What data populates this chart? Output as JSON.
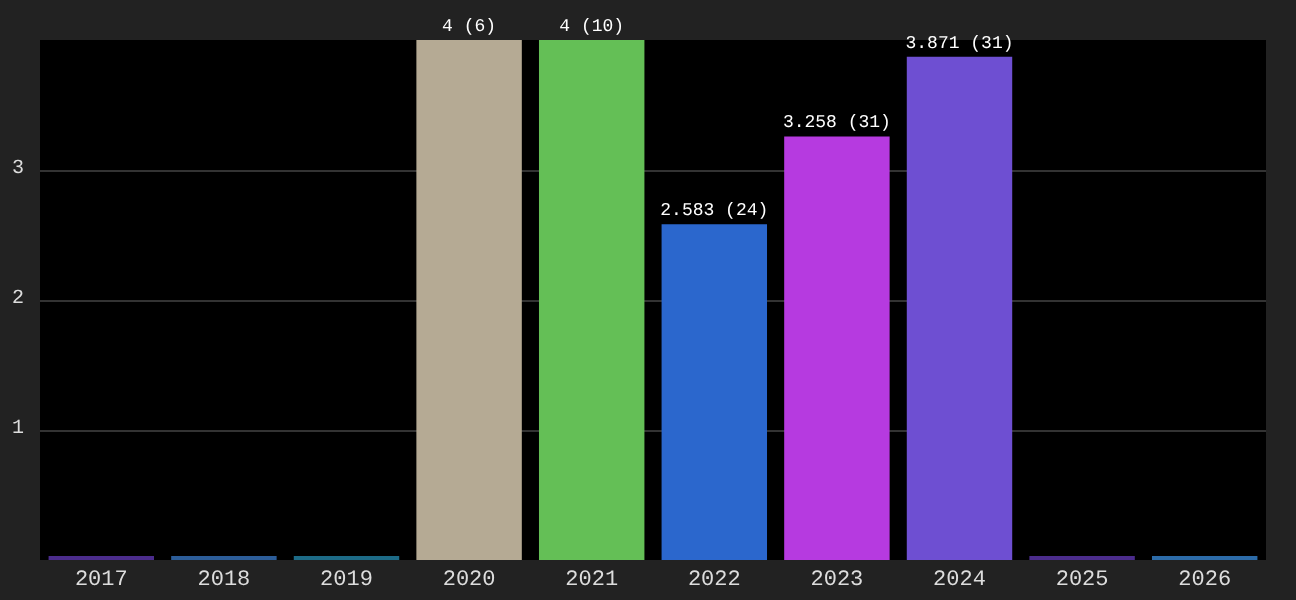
{
  "chart_data": {
    "type": "bar",
    "categories": [
      "2017",
      "2018",
      "2019",
      "2020",
      "2021",
      "2022",
      "2023",
      "2024",
      "2025",
      "2026"
    ],
    "values": [
      0,
      0,
      0,
      4,
      4,
      2.583,
      3.258,
      3.871,
      0,
      0
    ],
    "colors": [
      "#4b2c8c",
      "#2c5d99",
      "#1d6b87",
      "#b5aa94",
      "#64bf56",
      "#2b67cd",
      "#b63ae0",
      "#6e4fd2",
      "#4b2c8c",
      "#2c6ba8"
    ],
    "value_labels": [
      null,
      null,
      null,
      "4 (6)",
      "4 (10)",
      "2.583 (24)",
      "3.258 (31)",
      "3.871 (31)",
      null,
      null
    ],
    "ylim": [
      0,
      4
    ],
    "yticks": [
      1,
      2,
      3
    ],
    "grid": "y"
  }
}
